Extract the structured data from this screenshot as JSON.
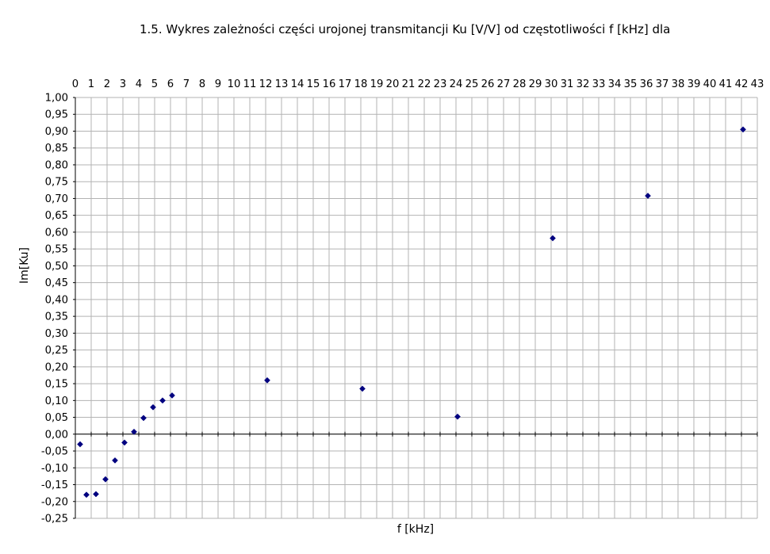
{
  "chart_data": {
    "type": "scatter",
    "title": "1.5. Wykres zależności części urojonej transmitancji Ku [V/V] od częstotliwości f [kHz] dla",
    "xlabel": "f [kHz]",
    "ylabel": "Im[Ku]",
    "xlim": [
      0,
      43
    ],
    "ylim": [
      -0.25,
      1.0
    ],
    "x_ticks": [
      0,
      1,
      2,
      3,
      4,
      5,
      6,
      7,
      8,
      9,
      10,
      11,
      12,
      13,
      14,
      15,
      16,
      17,
      18,
      19,
      20,
      21,
      22,
      23,
      24,
      25,
      26,
      27,
      28,
      29,
      30,
      31,
      32,
      33,
      34,
      35,
      36,
      37,
      38,
      39,
      40,
      41,
      42,
      43
    ],
    "y_tick_labels": [
      "1,00",
      "0,95",
      "0,90",
      "0,85",
      "0,80",
      "0,75",
      "0,70",
      "0,65",
      "0,60",
      "0,55",
      "0,50",
      "0,45",
      "0,40",
      "0,35",
      "0,30",
      "0,25",
      "0,20",
      "0,15",
      "0,10",
      "0,05",
      "0,00",
      "-0,05",
      "-0,10",
      "-0,15",
      "-0,20",
      "-0,25"
    ],
    "grid": true,
    "marker_color": "#000080",
    "series": [
      {
        "points": [
          {
            "x": 0.3,
            "y": -0.03
          },
          {
            "x": 0.7,
            "y": -0.18
          },
          {
            "x": 1.3,
            "y": -0.178
          },
          {
            "x": 1.9,
            "y": -0.134
          },
          {
            "x": 2.5,
            "y": -0.078
          },
          {
            "x": 3.1,
            "y": -0.025
          },
          {
            "x": 3.7,
            "y": 0.007
          },
          {
            "x": 4.3,
            "y": 0.048
          },
          {
            "x": 4.9,
            "y": 0.08
          },
          {
            "x": 5.5,
            "y": 0.1
          },
          {
            "x": 6.1,
            "y": 0.115
          },
          {
            "x": 12.1,
            "y": 0.16
          },
          {
            "x": 18.1,
            "y": 0.135
          },
          {
            "x": 24.1,
            "y": 0.052
          },
          {
            "x": 30.1,
            "y": 0.582
          },
          {
            "x": 36.1,
            "y": 0.708
          },
          {
            "x": 42.1,
            "y": 0.905
          }
        ]
      }
    ]
  }
}
